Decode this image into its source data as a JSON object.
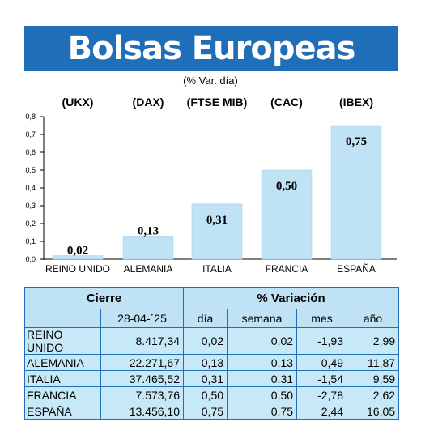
{
  "title": "Bolsas Europeas",
  "subtitle": "(% Var. día)",
  "indices": [
    "(UKX)",
    "(DAX)",
    "(FTSE MIB)",
    "(CAC)",
    "(IBEX)"
  ],
  "colors": {
    "banner": "#1f6fb8",
    "bar": "#bfe3f4",
    "table_bg": "#c7e8f6",
    "grid_border": "#1f6fb8"
  },
  "chart_data": {
    "type": "bar",
    "categories": [
      "REINO UNIDO",
      "ALEMANIA",
      "ITALIA",
      "FRANCIA",
      "ESPAÑA"
    ],
    "values": [
      0.02,
      0.13,
      0.31,
      0.5,
      0.75
    ],
    "value_labels": [
      "0,02",
      "0,13",
      "0,31",
      "0,50",
      "0,75"
    ],
    "ylim": [
      0,
      0.8
    ],
    "yticks": [
      "0,0",
      "0,1",
      "0,2",
      "0,3",
      "0,4",
      "0,5",
      "0,6",
      "0,7",
      "0,8"
    ],
    "grid": false
  },
  "table": {
    "group_headers": {
      "cierre": "Cierre",
      "variacion": "% Variación"
    },
    "columns": [
      "28-04-´25",
      "día",
      "semana",
      "mes",
      "año"
    ],
    "rows": [
      [
        "REINO UNIDO",
        "8.417,34",
        "0,02",
        "0,02",
        "-1,93",
        "2,99"
      ],
      [
        "ALEMANIA",
        "22.271,67",
        "0,13",
        "0,13",
        "0,49",
        "11,87"
      ],
      [
        "ITALIA",
        "37.465,52",
        "0,31",
        "0,31",
        "-1,54",
        "9,59"
      ],
      [
        "FRANCIA",
        "7.573,76",
        "0,50",
        "0,50",
        "-2,78",
        "2,62"
      ],
      [
        "ESPAÑA",
        "13.456,10",
        "0,75",
        "0,75",
        "2,44",
        "16,05"
      ]
    ]
  }
}
